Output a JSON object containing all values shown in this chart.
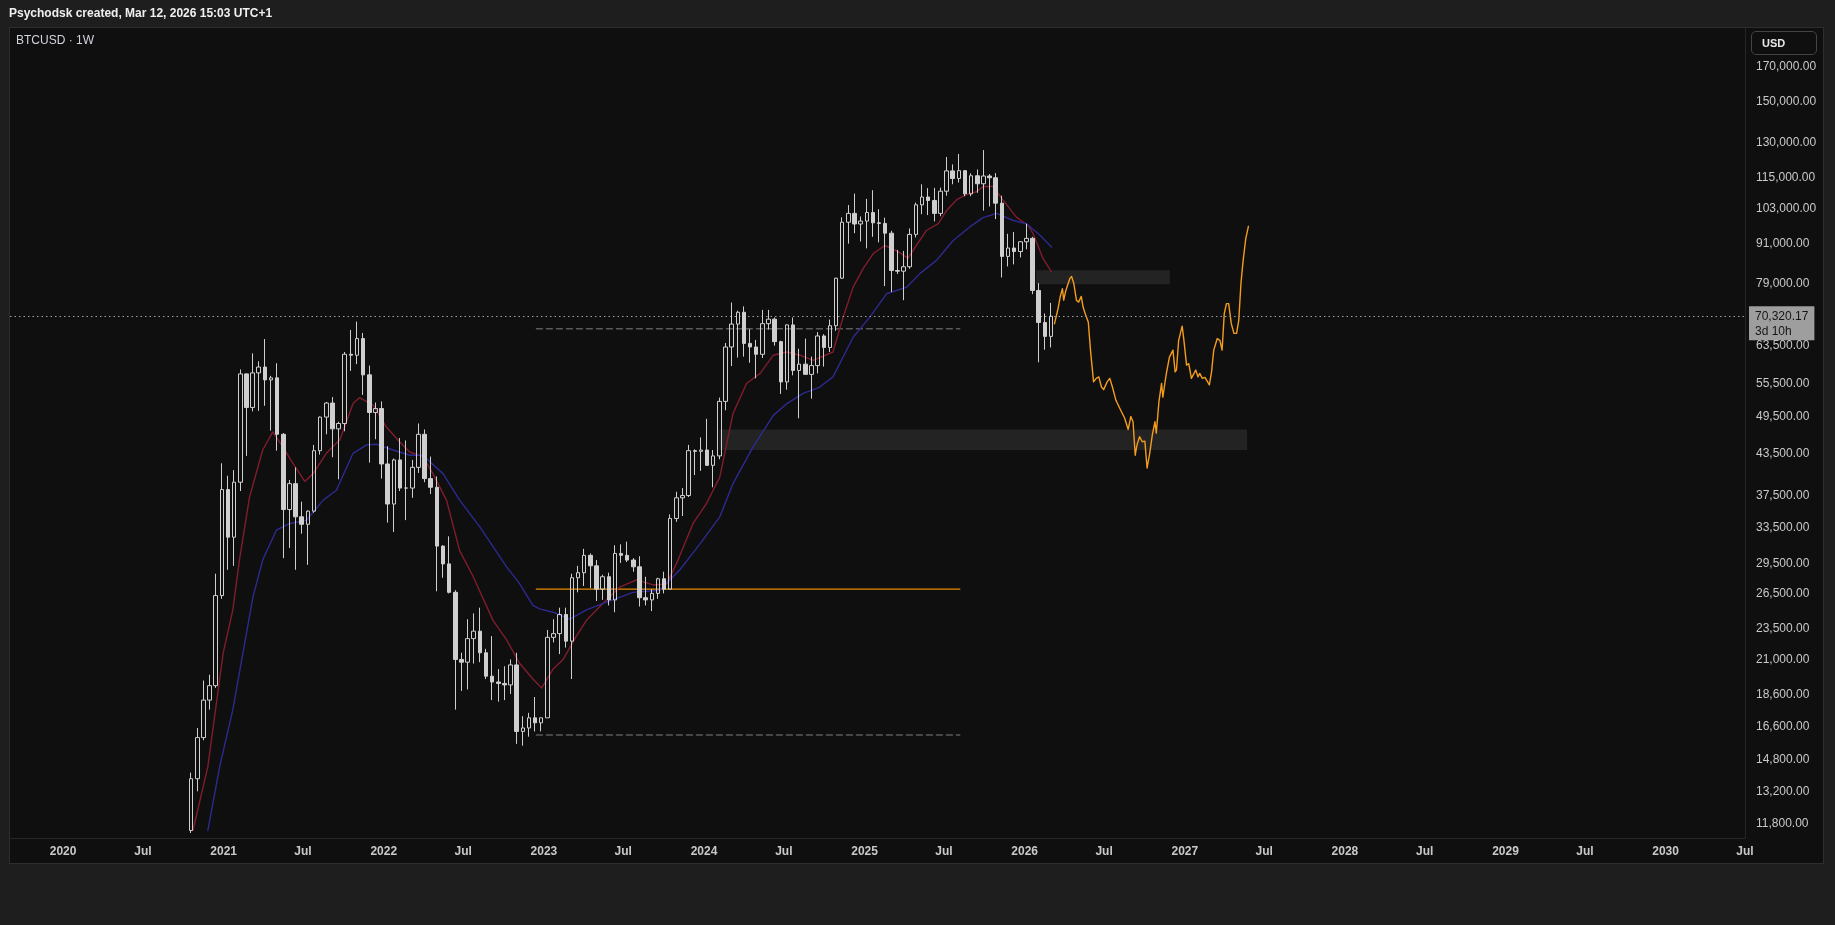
{
  "chart_data": {
    "type": "candlestick",
    "title": "BTCUSD · 1W",
    "ylabel": "USD",
    "annotations": [
      "Psychodsk created, Mar 12, 2026 15:03 UTC+1"
    ],
    "log": true,
    "grid": false,
    "marker": "none",
    "xlim": [
      "2019-09-02",
      "2030-07-01"
    ],
    "ylim": [
      11200,
      194000
    ],
    "xticks": [
      {
        "value": "2020-01-01",
        "label": "2020"
      },
      {
        "value": "2020-07-01",
        "label": "Jul"
      },
      {
        "value": "2021-01-01",
        "label": "2021"
      },
      {
        "value": "2021-07-01",
        "label": "Jul"
      },
      {
        "value": "2022-01-01",
        "label": "2022"
      },
      {
        "value": "2022-07-01",
        "label": "Jul"
      },
      {
        "value": "2023-01-01",
        "label": "2023"
      },
      {
        "value": "2023-07-01",
        "label": "Jul"
      },
      {
        "value": "2024-01-01",
        "label": "2024"
      },
      {
        "value": "2024-07-01",
        "label": "Jul"
      },
      {
        "value": "2025-01-01",
        "label": "2025"
      },
      {
        "value": "2025-07-01",
        "label": "Jul"
      },
      {
        "value": "2026-01-01",
        "label": "2026"
      },
      {
        "value": "2026-07-01",
        "label": "Jul"
      },
      {
        "value": "2027-01-01",
        "label": "2027"
      },
      {
        "value": "2027-07-01",
        "label": "Jul"
      },
      {
        "value": "2028-01-01",
        "label": "2028"
      },
      {
        "value": "2028-07-01",
        "label": "Jul"
      },
      {
        "value": "2029-01-01",
        "label": "2029"
      },
      {
        "value": "2029-07-01",
        "label": "Jul"
      },
      {
        "value": "2030-01-01",
        "label": "2030"
      },
      {
        "value": "2030-07-01",
        "label": "Jul"
      }
    ],
    "yticks": [
      {
        "value": 170000,
        "label": "170,000.00"
      },
      {
        "value": 150000,
        "label": "150,000.00"
      },
      {
        "value": 130000,
        "label": "130,000.00"
      },
      {
        "value": 115000,
        "label": "115,000.00"
      },
      {
        "value": 103000,
        "label": "103,000.00"
      },
      {
        "value": 91000,
        "label": "91,000.00"
      },
      {
        "value": 79000,
        "label": "79,000.00"
      },
      {
        "value": 63500,
        "label": "63,500.00"
      },
      {
        "value": 55500,
        "label": "55,500.00"
      },
      {
        "value": 49500,
        "label": "49,500.00"
      },
      {
        "value": 43500,
        "label": "43,500.00"
      },
      {
        "value": 37500,
        "label": "37,500.00"
      },
      {
        "value": 33500,
        "label": "33,500.00"
      },
      {
        "value": 29500,
        "label": "29,500.00"
      },
      {
        "value": 26500,
        "label": "26,500.00"
      },
      {
        "value": 23500,
        "label": "23,500.00"
      },
      {
        "value": 21000,
        "label": "21,000.00"
      },
      {
        "value": 18600,
        "label": "18,600.00"
      },
      {
        "value": 16600,
        "label": "16,600.00"
      },
      {
        "value": 14800,
        "label": "14,800.00"
      },
      {
        "value": 13200,
        "label": "13,200.00"
      },
      {
        "value": 11800,
        "label": "11,800.00"
      }
    ],
    "ref_lines": [
      {
        "axis": "y",
        "value": 70320.17,
        "label": "70,320.17\n3d 10h",
        "color": "#9e9e9e",
        "line_style": "dotted"
      }
    ],
    "series": [
      {
        "type": "line",
        "x": [
          "2024-02-05",
          "2027-05-23"
        ],
        "values": [
          null,
          null
        ],
        "lower": [
          43900,
          43900
        ],
        "upper": [
          47200,
          47200
        ],
        "color": "#232323"
      },
      {
        "type": "line",
        "x": [
          "2026-01-27",
          "2026-11-28"
        ],
        "values": [
          null,
          null
        ],
        "lower": [
          78700,
          78700
        ],
        "upper": [
          82700,
          82700
        ],
        "color": "#232323"
      },
      {
        "type": "line",
        "x": [
          "2022-12-15",
          "2025-08-06"
        ],
        "values": [
          67300,
          67300
        ],
        "color": "#5a5a5a",
        "line_style": "dashed"
      },
      {
        "type": "line",
        "x": [
          "2022-12-15",
          "2025-08-06"
        ],
        "values": [
          16100,
          16100
        ],
        "color": "#5a5a5a",
        "line_style": "dashed"
      },
      {
        "type": "line",
        "x": [
          "2022-12-15",
          "2025-08-06"
        ],
        "values": [
          26900,
          26900
        ],
        "color": "#e68a00"
      },
      {
        "type": "line",
        "color": "#7f1d2d",
        "x": [
          "2020-10-23",
          "2020-11-26",
          "2020-12-31",
          "2021-01-22",
          "2021-02-06",
          "2021-03-01",
          "2021-03-31",
          "2021-04-23",
          "2021-05-16",
          "2021-06-08",
          "2021-07-05",
          "2021-07-24",
          "2021-08-23",
          "2021-09-23",
          "2021-10-23",
          "2021-11-07",
          "2021-12-08",
          "2022-01-07",
          "2022-02-06",
          "2022-03-01",
          "2022-03-31",
          "2022-04-23",
          "2022-05-24",
          "2022-06-23",
          "2022-07-24",
          "2022-09-07",
          "2022-10-08",
          "2022-11-07",
          "2022-12-07",
          "2022-12-27",
          "2023-01-22",
          "2023-02-14",
          "2023-03-16",
          "2023-04-08",
          "2023-05-16",
          "2023-06-23",
          "2023-07-31",
          "2023-09-07",
          "2023-10-08",
          "2023-10-30",
          "2023-12-07",
          "2024-01-07",
          "2024-02-06",
          "2024-03-07",
          "2024-04-07",
          "2024-05-08",
          "2024-06-07",
          "2024-07-08",
          "2024-08-07",
          "2024-09-06",
          "2024-10-21",
          "2024-11-13",
          "2024-12-06",
          "2024-12-29",
          "2025-01-21",
          "2025-02-16",
          "2025-03-15",
          "2025-04-10",
          "2025-04-29",
          "2025-05-22",
          "2025-06-18",
          "2025-07-07",
          "2025-07-30",
          "2025-08-22",
          "2025-09-13",
          "2025-09-28",
          "2025-10-21",
          "2025-11-12",
          "2025-12-13",
          "2026-01-09",
          "2026-01-20",
          "2026-02-12",
          "2026-03-03"
        ],
        "values": [
          11500,
          14400,
          21500,
          25000,
          29800,
          37200,
          43900,
          46800,
          44400,
          41900,
          39300,
          40400,
          43400,
          45500,
          51700,
          52800,
          51400,
          47600,
          45200,
          43600,
          42900,
          40400,
          36800,
          30800,
          28100,
          24100,
          22500,
          20700,
          19600,
          19000,
          20300,
          21000,
          22800,
          24100,
          25600,
          27100,
          27800,
          27300,
          27400,
          29400,
          33900,
          36400,
          39900,
          49900,
          55500,
          57500,
          61300,
          62000,
          61300,
          60200,
          62000,
          70000,
          77900,
          83200,
          87700,
          90200,
          88500,
          86300,
          90200,
          95100,
          97400,
          102000,
          106000,
          108000,
          109000,
          111000,
          111000,
          106000,
          99700,
          96800,
          94100,
          86100,
          82200
        ]
      },
      {
        "type": "line",
        "color": "#2d2a8f",
        "x": [
          "2020-11-26",
          "2020-12-23",
          "2021-01-22",
          "2021-02-14",
          "2021-03-09",
          "2021-03-31",
          "2021-05-01",
          "2021-06-01",
          "2021-07-09",
          "2021-08-16",
          "2021-09-15",
          "2021-10-23",
          "2021-11-23",
          "2021-12-15",
          "2022-01-22",
          "2022-03-01",
          "2022-03-31",
          "2022-05-16",
          "2022-06-23",
          "2022-08-08",
          "2022-10-08",
          "2022-11-07",
          "2022-12-07",
          "2022-12-22",
          "2023-01-22",
          "2023-03-01",
          "2023-04-08",
          "2023-05-24",
          "2023-07-23",
          "2023-09-22",
          "2023-11-07",
          "2023-12-22",
          "2024-02-06",
          "2024-03-07",
          "2024-04-22",
          "2024-06-07",
          "2024-07-08",
          "2024-08-14",
          "2024-09-21",
          "2024-10-21",
          "2024-12-06",
          "2025-01-13",
          "2025-02-20",
          "2025-04-07",
          "2025-05-07",
          "2025-06-14",
          "2025-07-22",
          "2025-08-29",
          "2025-09-28",
          "2025-10-29",
          "2025-12-06",
          "2026-01-05",
          "2026-02-05",
          "2026-03-03"
        ],
        "values": [
          11500,
          14400,
          17600,
          21500,
          26200,
          29800,
          33100,
          33900,
          34300,
          36800,
          38100,
          43400,
          44700,
          44800,
          43900,
          43100,
          43100,
          40400,
          36800,
          33500,
          29100,
          27400,
          25400,
          25100,
          24800,
          24200,
          25000,
          25700,
          26600,
          26800,
          28800,
          31500,
          34700,
          39000,
          44400,
          49600,
          51700,
          53600,
          54800,
          56800,
          65300,
          70100,
          76100,
          77900,
          81700,
          85600,
          91800,
          96300,
          99500,
          101000,
          98500,
          97400,
          93500,
          89700
        ]
      },
      {
        "type": "line",
        "color": "#f39c1d",
        "x": [
          "2026-03-10",
          "2026-03-18",
          "2026-03-23",
          "2026-03-28",
          "2026-03-31",
          "2026-04-04",
          "2026-04-07",
          "2026-04-14",
          "2026-04-18",
          "2026-04-23",
          "2026-04-29",
          "2026-05-04",
          "2026-05-10",
          "2026-05-14",
          "2026-05-20",
          "2026-05-26",
          "2026-05-31",
          "2026-06-07",
          "2026-06-13",
          "2026-06-19",
          "2026-06-25",
          "2026-06-30",
          "2026-07-08",
          "2026-07-14",
          "2026-07-20",
          "2026-07-28",
          "2026-08-06",
          "2026-08-17",
          "2026-08-25",
          "2026-08-31",
          "2026-09-05",
          "2026-09-10",
          "2026-09-14",
          "2026-09-20",
          "2026-09-26",
          "2026-10-02",
          "2026-10-07",
          "2026-10-13",
          "2026-10-19",
          "2026-10-25",
          "2026-10-28",
          "2026-11-03",
          "2026-11-09",
          "2026-11-12",
          "2026-11-16",
          "2026-11-20",
          "2026-11-27",
          "2026-12-05",
          "2026-12-10",
          "2026-12-13",
          "2026-12-18",
          "2026-12-26",
          "2026-12-30",
          "2027-01-05",
          "2027-01-10",
          "2027-01-16",
          "2027-01-22",
          "2027-01-26",
          "2027-01-31",
          "2027-02-04",
          "2027-02-10",
          "2027-02-16",
          "2027-02-22",
          "2027-02-26",
          "2027-03-03",
          "2027-03-08",
          "2027-03-16",
          "2027-03-22",
          "2027-03-27",
          "2027-04-01",
          "2027-04-06",
          "2027-04-11",
          "2027-04-17",
          "2027-04-23",
          "2027-04-29",
          "2027-05-04",
          "2027-05-09",
          "2027-05-14",
          "2027-05-20",
          "2027-05-26"
        ],
        "values": [
          68500,
          72200,
          75300,
          77500,
          74400,
          76600,
          77800,
          80300,
          80900,
          78900,
          74400,
          73900,
          75400,
          72700,
          70600,
          68900,
          62400,
          55800,
          56500,
          56800,
          54800,
          54300,
          55800,
          56500,
          54800,
          52300,
          50800,
          49100,
          47200,
          49400,
          48500,
          43100,
          44700,
          46000,
          45200,
          45300,
          41200,
          43400,
          46300,
          48500,
          46600,
          52000,
          55500,
          52900,
          55200,
          57500,
          60900,
          62400,
          57800,
          58200,
          64600,
          67900,
          64600,
          59200,
          59500,
          56500,
          57500,
          58200,
          56800,
          57500,
          56500,
          56700,
          55800,
          55200,
          57800,
          62400,
          65000,
          64600,
          62400,
          71000,
          73500,
          73500,
          68500,
          66200,
          66200,
          69300,
          78900,
          85600,
          92400,
          96500
        ]
      },
      {
        "type": "candlestick",
        "color": "#cfcfcf",
        "x": [
          "2020-10-19",
          "2020-11-02",
          "2020-11-16",
          "2020-11-30",
          "2020-12-14",
          "2020-12-28",
          "2021-01-11",
          "2021-01-25",
          "2021-02-08",
          "2021-02-22",
          "2021-03-08",
          "2021-03-22",
          "2021-04-05",
          "2021-04-19",
          "2021-05-03",
          "2021-05-17",
          "2021-05-31",
          "2021-06-14",
          "2021-06-28",
          "2021-07-12",
          "2021-07-26",
          "2021-08-09",
          "2021-08-23",
          "2021-09-06",
          "2021-09-20",
          "2021-10-04",
          "2021-10-18",
          "2021-11-01",
          "2021-11-15",
          "2021-11-29",
          "2021-12-13",
          "2021-12-27",
          "2022-01-10",
          "2022-01-24",
          "2022-02-07",
          "2022-02-21",
          "2022-03-07",
          "2022-03-21",
          "2022-04-04",
          "2022-04-18",
          "2022-05-02",
          "2022-05-16",
          "2022-05-30",
          "2022-06-13",
          "2022-06-27",
          "2022-07-11",
          "2022-07-25",
          "2022-08-08",
          "2022-08-22",
          "2022-09-05",
          "2022-09-19",
          "2022-10-03",
          "2022-10-17",
          "2022-10-31",
          "2022-11-14",
          "2022-11-28",
          "2022-12-12",
          "2022-12-26",
          "2023-01-09",
          "2023-01-23",
          "2023-02-06",
          "2023-02-20",
          "2023-03-06",
          "2023-03-20",
          "2023-04-03",
          "2023-04-17",
          "2023-05-01",
          "2023-05-15",
          "2023-05-29",
          "2023-06-12",
          "2023-06-26",
          "2023-07-10",
          "2023-07-24",
          "2023-08-07",
          "2023-08-21",
          "2023-09-04",
          "2023-09-18",
          "2023-10-02",
          "2023-10-16",
          "2023-10-30",
          "2023-11-13",
          "2023-11-27",
          "2023-12-11",
          "2023-12-25",
          "2024-01-08",
          "2024-01-22",
          "2024-02-05",
          "2024-02-19",
          "2024-03-04",
          "2024-03-18",
          "2024-04-01",
          "2024-04-15",
          "2024-04-29",
          "2024-05-13",
          "2024-05-27",
          "2024-06-10",
          "2024-06-24",
          "2024-07-08",
          "2024-07-22",
          "2024-08-05",
          "2024-08-19",
          "2024-09-02",
          "2024-09-16",
          "2024-09-30",
          "2024-10-14",
          "2024-10-28",
          "2024-11-11",
          "2024-11-25",
          "2024-12-09",
          "2024-12-23",
          "2025-01-06",
          "2025-01-20",
          "2025-02-03",
          "2025-02-17",
          "2025-03-03",
          "2025-03-17",
          "2025-03-31",
          "2025-04-14",
          "2025-04-28",
          "2025-05-12",
          "2025-05-26",
          "2025-06-09",
          "2025-06-23",
          "2025-07-07",
          "2025-07-21",
          "2025-08-04",
          "2025-08-18",
          "2025-09-01",
          "2025-09-15",
          "2025-09-29",
          "2025-10-13",
          "2025-10-27",
          "2025-11-10",
          "2025-11-24",
          "2025-12-08",
          "2025-12-22",
          "2026-01-05",
          "2026-01-19",
          "2026-02-02",
          "2026-02-16",
          "2026-03-02"
        ],
        "ohlc": [
          [
            11500,
            14100,
            11400,
            13800
          ],
          [
            13800,
            16500,
            13200,
            15950
          ],
          [
            15950,
            19500,
            15800,
            18200
          ],
          [
            18200,
            19900,
            17600,
            19150
          ],
          [
            19150,
            28400,
            19000,
            26300
          ],
          [
            26300,
            41900,
            26000,
            38200
          ],
          [
            38200,
            40100,
            28800,
            32300
          ],
          [
            32300,
            40900,
            29200,
            39200
          ],
          [
            39200,
            58300,
            38000,
            57400
          ],
          [
            57400,
            57500,
            43000,
            51000
          ],
          [
            51000,
            61700,
            50300,
            57600
          ],
          [
            57600,
            60000,
            50400,
            58800
          ],
          [
            58800,
            64900,
            51300,
            56200
          ],
          [
            56200,
            57000,
            47000,
            56600
          ],
          [
            56600,
            59600,
            43800,
            46400
          ],
          [
            46400,
            46600,
            30000,
            35600
          ],
          [
            35600,
            39500,
            31100,
            39000
          ],
          [
            39000,
            41300,
            28800,
            34700
          ],
          [
            34700,
            36600,
            32700,
            33800
          ],
          [
            33800,
            35500,
            29300,
            35400
          ],
          [
            35400,
            44700,
            35200,
            43800
          ],
          [
            43800,
            49400,
            43200,
            49300
          ],
          [
            49300,
            52000,
            46400,
            51800
          ],
          [
            51800,
            52900,
            42800,
            47300
          ],
          [
            47300,
            48500,
            39600,
            48200
          ],
          [
            48200,
            62000,
            46900,
            61500
          ],
          [
            61500,
            67000,
            58000,
            61300
          ],
          [
            61300,
            69000,
            59400,
            65000
          ],
          [
            65000,
            66300,
            53300,
            57200
          ],
          [
            57200,
            59100,
            42000,
            50100
          ],
          [
            50100,
            51900,
            45600,
            50800
          ],
          [
            50800,
            52100,
            39700,
            41800
          ],
          [
            41800,
            44500,
            34000,
            36300
          ],
          [
            36300,
            42600,
            32900,
            42400
          ],
          [
            42400,
            45800,
            38000,
            38400
          ],
          [
            38400,
            45400,
            34300,
            38400
          ],
          [
            38400,
            42400,
            37100,
            41300
          ],
          [
            41300,
            48200,
            40500,
            46400
          ],
          [
            46400,
            47200,
            39200,
            39700
          ],
          [
            39700,
            42900,
            37600,
            38500
          ],
          [
            38500,
            40000,
            26700,
            31300
          ],
          [
            31300,
            31400,
            28000,
            29400
          ],
          [
            29400,
            32400,
            26500,
            26600
          ],
          [
            26600,
            26800,
            17600,
            21000
          ],
          [
            21000,
            21500,
            18800,
            20800
          ],
          [
            20800,
            24200,
            18900,
            22600
          ],
          [
            22600,
            24700,
            20700,
            23200
          ],
          [
            23200,
            25200,
            20800,
            21500
          ],
          [
            21500,
            21800,
            19600,
            19800
          ],
          [
            19800,
            22800,
            18200,
            19400
          ],
          [
            19400,
            20300,
            18100,
            19300
          ],
          [
            19300,
            20500,
            18200,
            19200
          ],
          [
            19200,
            21000,
            18600,
            20600
          ],
          [
            20600,
            21500,
            15600,
            16300
          ],
          [
            16300,
            17200,
            15500,
            16500
          ],
          [
            16500,
            17400,
            16000,
            17100
          ],
          [
            17100,
            18400,
            16300,
            16800
          ],
          [
            16800,
            17100,
            16300,
            17100
          ],
          [
            17100,
            23300,
            17100,
            22700
          ],
          [
            22700,
            24200,
            22300,
            23000
          ],
          [
            23000,
            25200,
            21400,
            24600
          ],
          [
            24600,
            25200,
            21900,
            22400
          ],
          [
            22400,
            28400,
            19600,
            28000
          ],
          [
            28000,
            29200,
            26600,
            28500
          ],
          [
            28500,
            31000,
            27200,
            30300
          ],
          [
            30300,
            30500,
            27000,
            29200
          ],
          [
            29200,
            29800,
            25800,
            26900
          ],
          [
            26900,
            28300,
            25900,
            28100
          ],
          [
            28100,
            28500,
            25400,
            25900
          ],
          [
            25900,
            31400,
            24800,
            30500
          ],
          [
            30500,
            31500,
            29500,
            30300
          ],
          [
            30300,
            31800,
            29600,
            29800
          ],
          [
            29800,
            30000,
            28600,
            29100
          ],
          [
            29100,
            30200,
            25300,
            26100
          ],
          [
            26100,
            28100,
            25400,
            25900
          ],
          [
            25900,
            26900,
            24900,
            26500
          ],
          [
            26500,
            28000,
            26000,
            27900
          ],
          [
            27900,
            28600,
            26500,
            26900
          ],
          [
            26900,
            35000,
            26900,
            34500
          ],
          [
            34500,
            37900,
            34100,
            37100
          ],
          [
            37100,
            38400,
            34800,
            37400
          ],
          [
            37400,
            44700,
            37200,
            43800
          ],
          [
            43800,
            44000,
            40200,
            43700
          ],
          [
            43700,
            45900,
            40800,
            43900
          ],
          [
            43900,
            49000,
            41500,
            41600
          ],
          [
            41600,
            43900,
            38500,
            43000
          ],
          [
            43000,
            52800,
            42500,
            52100
          ],
          [
            52100,
            64000,
            50500,
            63100
          ],
          [
            63100,
            73800,
            59000,
            68400
          ],
          [
            68400,
            71700,
            60800,
            71300
          ],
          [
            71300,
            72800,
            61000,
            63900
          ],
          [
            63900,
            67200,
            59700,
            63100
          ],
          [
            63100,
            64700,
            56500,
            61500
          ],
          [
            61500,
            71900,
            60700,
            68500
          ],
          [
            68500,
            71900,
            67100,
            69600
          ],
          [
            69600,
            70000,
            63400,
            64300
          ],
          [
            64300,
            64500,
            53500,
            55800
          ],
          [
            55800,
            68300,
            54300,
            68200
          ],
          [
            68200,
            70000,
            57100,
            58100
          ],
          [
            58100,
            62700,
            49100,
            59400
          ],
          [
            59400,
            65000,
            57200,
            57300
          ],
          [
            57300,
            61000,
            52600,
            59100
          ],
          [
            59100,
            66500,
            57500,
            65600
          ],
          [
            65600,
            66000,
            58900,
            63000
          ],
          [
            63000,
            69500,
            62000,
            68000
          ],
          [
            68000,
            80500,
            66800,
            80400
          ],
          [
            80400,
            99600,
            80200,
            97900
          ],
          [
            97900,
            104000,
            90800,
            101000
          ],
          [
            101000,
            108300,
            94200,
            97300
          ],
          [
            97300,
            99900,
            91500,
            98300
          ],
          [
            98300,
            106300,
            89300,
            101300
          ],
          [
            101300,
            109600,
            93000,
            97700
          ],
          [
            97700,
            102500,
            91200,
            97500
          ],
          [
            97500,
            99500,
            78200,
            94200
          ],
          [
            94200,
            95000,
            76600,
            82600
          ],
          [
            82600,
            88800,
            81600,
            82400
          ],
          [
            82400,
            88500,
            74400,
            83700
          ],
          [
            83700,
            95800,
            83100,
            93800
          ],
          [
            93800,
            104900,
            92800,
            104100
          ],
          [
            104100,
            111900,
            100700,
            107000
          ],
          [
            107000,
            110400,
            100400,
            105700
          ],
          [
            105700,
            110500,
            98200,
            101000
          ],
          [
            101000,
            110600,
            100000,
            109200
          ],
          [
            109200,
            123200,
            107500,
            117300
          ],
          [
            117300,
            120000,
            111900,
            114200
          ],
          [
            114200,
            124500,
            112600,
            117400
          ],
          [
            117400,
            117600,
            107300,
            108200
          ],
          [
            108200,
            116300,
            107300,
            115300
          ],
          [
            115300,
            117900,
            108600,
            112100
          ],
          [
            112100,
            126200,
            102000,
            115200
          ],
          [
            115200,
            116000,
            103500,
            114500
          ],
          [
            114500,
            116400,
            99000,
            104700
          ],
          [
            104700,
            107500,
            80600,
            86800
          ],
          [
            86800,
            94000,
            83800,
            89400
          ],
          [
            89400,
            94600,
            84400,
            88300
          ],
          [
            88300,
            91600,
            86500,
            91400
          ],
          [
            91400,
            97400,
            89000,
            92500
          ],
          [
            92500,
            93000,
            76000,
            77000
          ],
          [
            77000,
            79000,
            59800,
            68800
          ],
          [
            68800,
            71000,
            62500,
            65500
          ],
          [
            65500,
            73700,
            63000,
            70320.17
          ]
        ]
      }
    ]
  }
}
